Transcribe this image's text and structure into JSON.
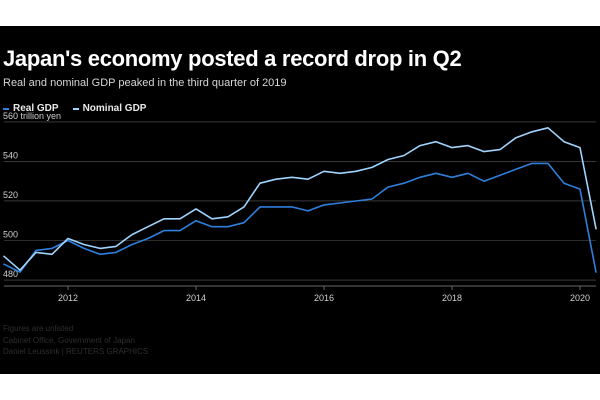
{
  "chart_data": {
    "type": "line",
    "title": "Japan's economy posted a record drop in Q2",
    "subtitle": "Real and nominal GDP peaked in the third quarter of 2019",
    "xlabel": "",
    "ylabel": "",
    "unit_label": "560 trillion yen",
    "xlim": [
      2011.0,
      2020.25
    ],
    "ylim": [
      478,
      564
    ],
    "y_ticks": [
      480,
      500,
      520,
      540
    ],
    "y_tick_labels": [
      "480",
      "500",
      "520",
      "540"
    ],
    "x_ticks": [
      2012,
      2014,
      2016,
      2018,
      2020
    ],
    "x_tick_labels": [
      "2012",
      "2014",
      "2016",
      "2018",
      "2020"
    ],
    "grid": true,
    "legend_position": "top-left",
    "x": [
      2011.0,
      2011.25,
      2011.5,
      2011.75,
      2012.0,
      2012.25,
      2012.5,
      2012.75,
      2013.0,
      2013.25,
      2013.5,
      2013.75,
      2014.0,
      2014.25,
      2014.5,
      2014.75,
      2015.0,
      2015.25,
      2015.5,
      2015.75,
      2016.0,
      2016.25,
      2016.5,
      2016.75,
      2017.0,
      2017.25,
      2017.5,
      2017.75,
      2018.0,
      2018.25,
      2018.5,
      2018.75,
      2019.0,
      2019.25,
      2019.5,
      2019.75,
      2020.0,
      2020.25
    ],
    "series": [
      {
        "name": "Real GDP",
        "color": "#2f7fdc",
        "values": [
          488,
          484,
          495,
          496,
          500,
          496,
          493,
          494,
          498,
          501,
          505,
          505,
          510,
          507,
          507,
          509,
          517,
          517,
          517,
          515,
          518,
          519,
          520,
          521,
          527,
          529,
          532,
          534,
          532,
          534,
          530,
          533,
          536,
          539,
          539,
          529,
          526,
          484
        ]
      },
      {
        "name": "Nominal GDP",
        "color": "#9fd4ff",
        "values": [
          492,
          485,
          494,
          493,
          501,
          498,
          496,
          497,
          503,
          507,
          511,
          511,
          516,
          511,
          512,
          517,
          529,
          531,
          532,
          531,
          535,
          534,
          535,
          537,
          541,
          543,
          548,
          550,
          547,
          548,
          545,
          546,
          552,
          555,
          557,
          550,
          547,
          506
        ]
      }
    ],
    "source_lines": [
      "Figures are unlisted",
      "Cabinet Office, Government of Japan",
      "Daniel Leussink | REUTERS GRAPHICS"
    ]
  }
}
